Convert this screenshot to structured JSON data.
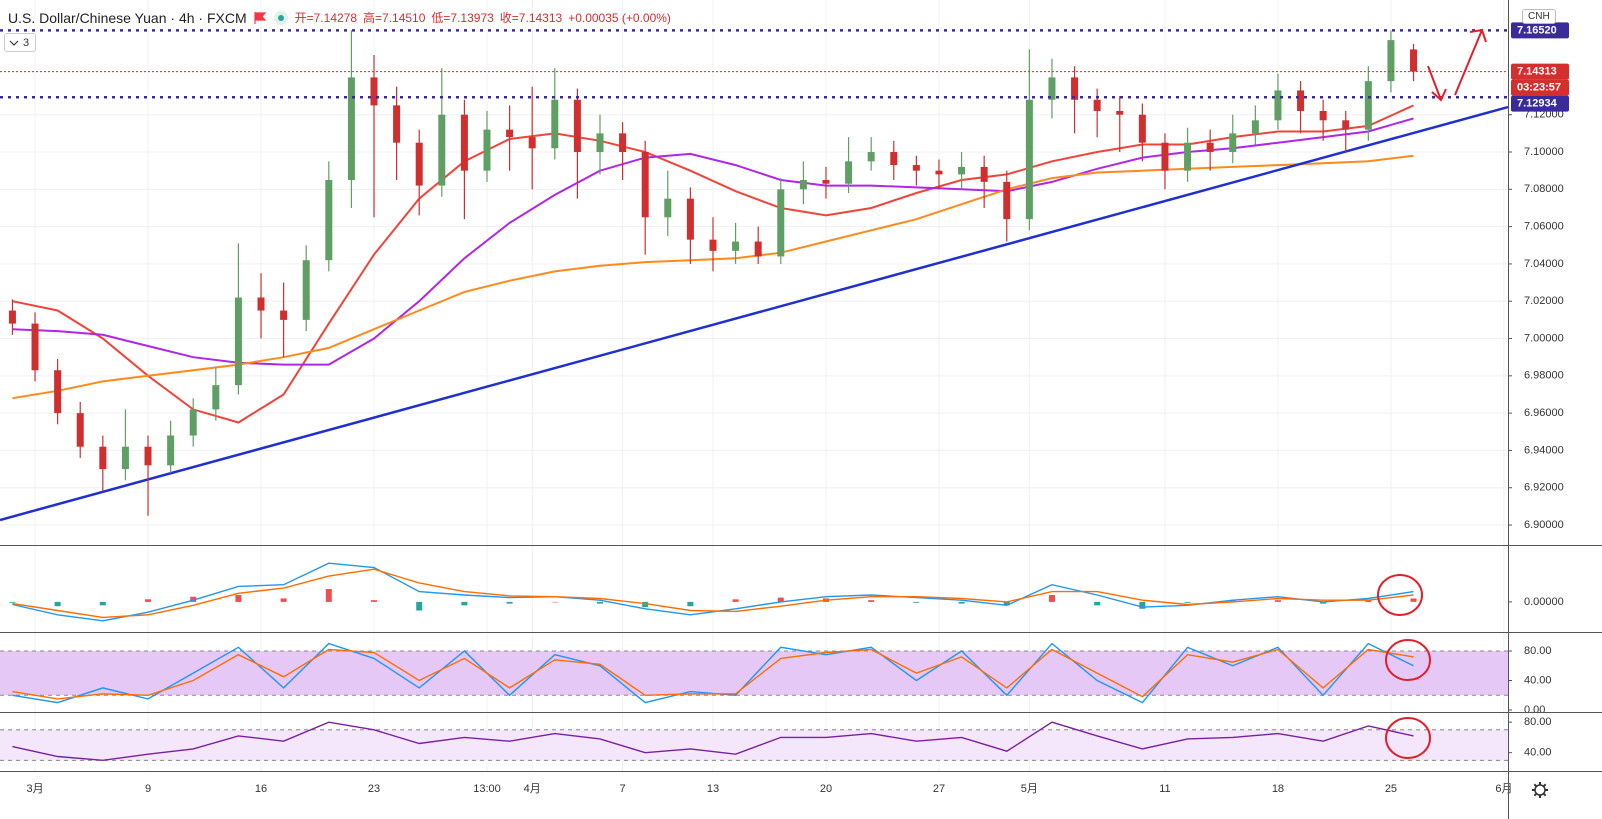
{
  "chart_data": [
    {
      "type": "candlestick",
      "title": "U.S. Dollar/Chinese Yuan · 4h · FXCM",
      "ohlc": [
        {
          "value": 7.14278,
          "label": "开=7.14278"
        },
        {
          "value": 7.1451,
          "label": "高=7.14510"
        },
        {
          "value": 7.13973,
          "label": "低=7.13973"
        },
        {
          "value": 7.14313,
          "label": "收=7.14313"
        },
        {
          "value": 0.00035,
          "label": "+0.00035 (+0.00%)"
        }
      ],
      "collapsed_count": "3",
      "symbol": "CNH",
      "countdown": "03:23:57",
      "up_color": "#5f9f63",
      "down_color": "#cf2f2f",
      "x": [
        -1,
        0,
        1,
        2,
        3,
        4,
        5,
        6,
        7,
        8,
        9,
        10,
        11,
        12,
        13,
        14,
        15,
        16,
        17,
        18,
        19,
        20,
        21,
        22,
        23,
        24,
        25,
        26,
        27,
        28,
        29,
        30,
        31,
        32,
        33,
        34,
        35,
        36,
        37,
        38,
        39,
        40,
        41,
        42,
        43,
        44,
        45,
        46,
        47,
        48,
        49,
        50,
        51,
        52,
        53,
        54,
        55,
        56,
        57,
        58,
        59,
        60,
        61
      ],
      "open": [
        7.015,
        7.008,
        6.983,
        6.96,
        6.942,
        6.93,
        6.942,
        6.932,
        6.948,
        6.962,
        6.975,
        7.022,
        7.015,
        7.01,
        7.042,
        7.085,
        7.14,
        7.125,
        7.105,
        7.082,
        7.12,
        7.09,
        7.112,
        7.108,
        7.102,
        7.128,
        7.1,
        7.11,
        7.1,
        7.065,
        7.075,
        7.053,
        7.047,
        7.052,
        7.044,
        7.08,
        7.085,
        7.083,
        7.095,
        7.1,
        7.093,
        7.09,
        7.088,
        7.092,
        7.084,
        7.064,
        7.128,
        7.14,
        7.128,
        7.122,
        7.12,
        7.105,
        7.09,
        7.105,
        7.1,
        7.11,
        7.117,
        7.133,
        7.122,
        7.117,
        7.112,
        7.138,
        7.155
      ],
      "high": [
        7.021,
        7.014,
        6.989,
        6.966,
        6.948,
        6.962,
        6.948,
        6.956,
        6.968,
        6.985,
        7.051,
        7.035,
        7.03,
        7.05,
        7.095,
        7.1652,
        7.152,
        7.135,
        7.112,
        7.145,
        7.128,
        7.122,
        7.125,
        7.135,
        7.145,
        7.134,
        7.12,
        7.116,
        7.106,
        7.09,
        7.081,
        7.065,
        7.062,
        7.06,
        7.086,
        7.095,
        7.092,
        7.108,
        7.108,
        7.106,
        7.098,
        7.096,
        7.1,
        7.098,
        7.09,
        7.155,
        7.15,
        7.146,
        7.134,
        7.13,
        7.126,
        7.11,
        7.113,
        7.112,
        7.12,
        7.125,
        7.142,
        7.138,
        7.128,
        7.122,
        7.146,
        7.1652,
        7.158
      ],
      "low": [
        7.002,
        6.977,
        6.954,
        6.936,
        6.918,
        6.924,
        6.905,
        6.928,
        6.942,
        6.956,
        6.97,
        7.0,
        6.99,
        7.004,
        7.036,
        7.07,
        7.065,
        7.085,
        7.066,
        7.076,
        7.064,
        7.084,
        7.09,
        7.08,
        7.096,
        7.075,
        7.088,
        7.085,
        7.045,
        7.055,
        7.04,
        7.036,
        7.04,
        7.04,
        7.04,
        7.072,
        7.075,
        7.078,
        7.09,
        7.085,
        7.082,
        7.08,
        7.08,
        7.07,
        7.052,
        7.058,
        7.118,
        7.11,
        7.108,
        7.1,
        7.095,
        7.08,
        7.084,
        7.09,
        7.094,
        7.104,
        7.112,
        7.11,
        7.106,
        7.1,
        7.106,
        7.132,
        7.138
      ],
      "close": [
        7.008,
        6.983,
        6.96,
        6.942,
        6.93,
        6.942,
        6.932,
        6.948,
        6.962,
        6.975,
        7.022,
        7.015,
        7.01,
        7.042,
        7.085,
        7.14,
        7.125,
        7.105,
        7.082,
        7.12,
        7.09,
        7.112,
        7.108,
        7.102,
        7.128,
        7.1,
        7.11,
        7.1,
        7.065,
        7.075,
        7.053,
        7.047,
        7.052,
        7.044,
        7.08,
        7.085,
        7.083,
        7.095,
        7.1,
        7.093,
        7.09,
        7.088,
        7.092,
        7.084,
        7.064,
        7.128,
        7.14,
        7.128,
        7.122,
        7.12,
        7.105,
        7.09,
        7.105,
        7.1,
        7.11,
        7.117,
        7.133,
        7.122,
        7.117,
        7.112,
        7.138,
        7.16,
        7.14313
      ],
      "series": [
        {
          "color": "#f0443a",
          "x": [
            -1,
            1,
            3,
            5,
            7,
            9,
            11,
            13,
            15,
            17,
            19,
            21,
            23,
            25,
            27,
            29,
            31,
            33,
            35,
            37,
            39,
            41,
            43,
            45,
            47,
            49,
            51,
            53,
            55,
            57,
            59,
            61
          ],
          "values": [
            7.02,
            7.015,
            7.0,
            6.98,
            6.962,
            6.955,
            6.97,
            7.008,
            7.045,
            7.075,
            7.095,
            7.107,
            7.11,
            7.106,
            7.1,
            7.09,
            7.079,
            7.07,
            7.066,
            7.07,
            7.078,
            7.085,
            7.088,
            7.095,
            7.1,
            7.104,
            7.104,
            7.108,
            7.111,
            7.111,
            7.114,
            7.125
          ]
        },
        {
          "color": "#b026e6",
          "x": [
            -1,
            1,
            3,
            5,
            7,
            9,
            11,
            13,
            15,
            17,
            19,
            21,
            23,
            25,
            27,
            29,
            31,
            33,
            35,
            37,
            39,
            41,
            43,
            45,
            47,
            49,
            51,
            53,
            55,
            57,
            59,
            61
          ],
          "values": [
            7.005,
            7.004,
            7.002,
            6.996,
            6.99,
            6.987,
            6.986,
            6.986,
            7.0,
            7.02,
            7.043,
            7.062,
            7.077,
            7.09,
            7.097,
            7.099,
            7.093,
            7.085,
            7.082,
            7.082,
            7.081,
            7.08,
            7.079,
            7.084,
            7.091,
            7.097,
            7.1,
            7.102,
            7.105,
            7.108,
            7.111,
            7.118
          ]
        },
        {
          "color": "#ff8a1c",
          "x": [
            -1,
            1,
            3,
            5,
            7,
            9,
            11,
            13,
            15,
            17,
            19,
            21,
            23,
            25,
            27,
            29,
            31,
            33,
            35,
            37,
            39,
            41,
            43,
            45,
            47,
            49,
            51,
            53,
            55,
            57,
            59,
            61
          ],
          "values": [
            6.968,
            6.972,
            6.977,
            6.98,
            6.983,
            6.986,
            6.99,
            6.995,
            7.005,
            7.015,
            7.025,
            7.031,
            7.036,
            7.039,
            7.041,
            7.042,
            7.043,
            7.046,
            7.052,
            7.058,
            7.064,
            7.072,
            7.08,
            7.086,
            7.089,
            7.09,
            7.091,
            7.092,
            7.093,
            7.094,
            7.095,
            7.098
          ]
        }
      ],
      "trendline": {
        "color": "#1f2fd1",
        "x": [
          -1.55,
          65.18
        ],
        "values": [
          6.9027,
          7.1241
        ]
      },
      "hlines": [
        {
          "value": 7.1652,
          "label": "7.16520",
          "color": "#3b2a99"
        },
        {
          "value": 7.14313,
          "label": "7.14313",
          "color": "#d32f2f"
        },
        {
          "value": 7.12934,
          "label": "7.12934",
          "color": "#3b2a99"
        }
      ],
      "xlim": [
        -1.55,
        65.18
      ],
      "xticks": [
        {
          "value": 0,
          "label": "3月"
        },
        {
          "value": 5,
          "label": "9"
        },
        {
          "value": 10,
          "label": "16"
        },
        {
          "value": 15,
          "label": "23"
        },
        {
          "value": 20,
          "label": "13:00"
        },
        {
          "value": 22,
          "label": "4月"
        },
        {
          "value": 26,
          "label": "7"
        },
        {
          "value": 30,
          "label": "13"
        },
        {
          "value": 35,
          "label": "20"
        },
        {
          "value": 40,
          "label": "27"
        },
        {
          "value": 44,
          "label": "5月"
        },
        {
          "value": 50,
          "label": "11"
        },
        {
          "value": 55,
          "label": "18"
        },
        {
          "value": 60,
          "label": "25"
        },
        {
          "value": 65,
          "label": "6月"
        }
      ],
      "ylim": [
        6.8893,
        7.1815
      ],
      "yticks": [
        {
          "value": 6.9,
          "label": "6.90000"
        },
        {
          "value": 6.92,
          "label": "6.92000"
        },
        {
          "value": 6.94,
          "label": "6.94000"
        },
        {
          "value": 6.96,
          "label": "6.96000"
        },
        {
          "value": 6.98,
          "label": "6.98000"
        },
        {
          "value": 7.0,
          "label": "7.00000"
        },
        {
          "value": 7.02,
          "label": "7.02000"
        },
        {
          "value": 7.04,
          "label": "7.04000"
        },
        {
          "value": 7.06,
          "label": "7.06000"
        },
        {
          "value": 7.08,
          "label": "7.08000"
        },
        {
          "value": 7.1,
          "label": "7.10000"
        },
        {
          "value": 7.12,
          "label": "7.12000"
        }
      ],
      "grid": true
    },
    {
      "type": "line",
      "x": [
        -1,
        1,
        3,
        5,
        7,
        9,
        11,
        13,
        15,
        17,
        19,
        21,
        23,
        25,
        27,
        29,
        31,
        33,
        35,
        37,
        39,
        41,
        43,
        45,
        47,
        49,
        51,
        53,
        55,
        57,
        59,
        61
      ],
      "bars": {
        "up_color": "#ef4f4f",
        "down_color": "#26a69a",
        "values": [
          -0.0001,
          -0.0005,
          -0.0004,
          0.0003,
          0.0006,
          0.0008,
          0.0004,
          0.0015,
          0.0002,
          -0.001,
          -0.0004,
          -0.0002,
          0.0,
          -0.0002,
          -0.0006,
          -0.0005,
          0.0003,
          0.0005,
          0.0004,
          0.0002,
          -0.0001,
          -0.0002,
          -0.0004,
          0.0008,
          -0.0004,
          -0.0008,
          -0.0001,
          0.0002,
          0.0002,
          -0.0002,
          0.0002,
          0.0004
        ]
      },
      "series": [
        {
          "color": "#2196f3",
          "values": [
            -0.0003,
            -0.0015,
            -0.0022,
            -0.0012,
            0.0002,
            0.0018,
            0.002,
            0.0045,
            0.004,
            0.0012,
            0.0008,
            0.0005,
            0.0006,
            0.0002,
            -0.0008,
            -0.0015,
            -0.0008,
            0.0,
            0.0006,
            0.0008,
            0.0005,
            0.0002,
            -0.0004,
            0.002,
            0.0008,
            -0.0006,
            -0.0004,
            0.0002,
            0.0006,
            0.0,
            0.0004,
            0.0012
          ]
        },
        {
          "color": "#ff6d00",
          "values": [
            -0.0002,
            -0.001,
            -0.0018,
            -0.0015,
            -0.0004,
            0.001,
            0.0016,
            0.003,
            0.0038,
            0.0022,
            0.0012,
            0.0007,
            0.0006,
            0.0004,
            -0.0002,
            -0.001,
            -0.0011,
            -0.0005,
            0.0002,
            0.0006,
            0.0006,
            0.0004,
            0.0,
            0.0012,
            0.0012,
            0.0002,
            -0.0003,
            0.0,
            0.0004,
            0.0002,
            0.0002,
            0.0008
          ]
        }
      ],
      "ylim": [
        -0.0035,
        0.0065
      ],
      "yticks": [
        {
          "value": 0,
          "label": "0.00000"
        }
      ]
    },
    {
      "type": "line",
      "x": [
        -1,
        1,
        3,
        5,
        7,
        9,
        11,
        13,
        15,
        17,
        19,
        21,
        23,
        25,
        27,
        29,
        31,
        33,
        35,
        37,
        39,
        41,
        43,
        45,
        47,
        49,
        51,
        53,
        55,
        57,
        59,
        61
      ],
      "band": [
        20,
        80
      ],
      "band_color": "#e6c8f7",
      "series": [
        {
          "color": "#2196f3",
          "values": [
            20,
            10,
            30,
            15,
            50,
            85,
            30,
            90,
            70,
            30,
            80,
            20,
            75,
            60,
            10,
            25,
            20,
            85,
            75,
            85,
            40,
            80,
            20,
            90,
            40,
            10,
            85,
            60,
            85,
            20,
            90,
            60
          ]
        },
        {
          "color": "#ff6d00",
          "values": [
            25,
            15,
            22,
            20,
            40,
            75,
            45,
            82,
            78,
            40,
            70,
            30,
            68,
            62,
            20,
            22,
            22,
            70,
            78,
            82,
            50,
            72,
            30,
            82,
            50,
            18,
            75,
            65,
            82,
            30,
            82,
            72
          ]
        }
      ],
      "ylim": [
        -2.7,
        104.4
      ],
      "yticks": [
        {
          "value": 0,
          "label": "0.00"
        },
        {
          "value": 40,
          "label": "40.00"
        },
        {
          "value": 80,
          "label": "80.00"
        }
      ]
    },
    {
      "type": "line",
      "x": [
        -1,
        1,
        3,
        5,
        7,
        9,
        11,
        13,
        15,
        17,
        19,
        21,
        23,
        25,
        27,
        29,
        31,
        33,
        35,
        37,
        39,
        41,
        43,
        45,
        47,
        49,
        51,
        53,
        55,
        57,
        59,
        61
      ],
      "band": [
        30,
        70
      ],
      "band_color": "#f4e6fb",
      "series": [
        {
          "color": "#7b1fa2",
          "values": [
            48,
            35,
            30,
            38,
            45,
            62,
            55,
            80,
            70,
            52,
            60,
            55,
            65,
            58,
            40,
            45,
            38,
            60,
            60,
            65,
            55,
            60,
            42,
            80,
            62,
            45,
            58,
            60,
            65,
            55,
            75,
            62
          ]
        }
      ],
      "ylim": [
        16,
        92
      ],
      "yticks": [
        {
          "value": 40,
          "label": "40.00"
        },
        {
          "value": 80,
          "label": "80.00"
        }
      ]
    }
  ]
}
